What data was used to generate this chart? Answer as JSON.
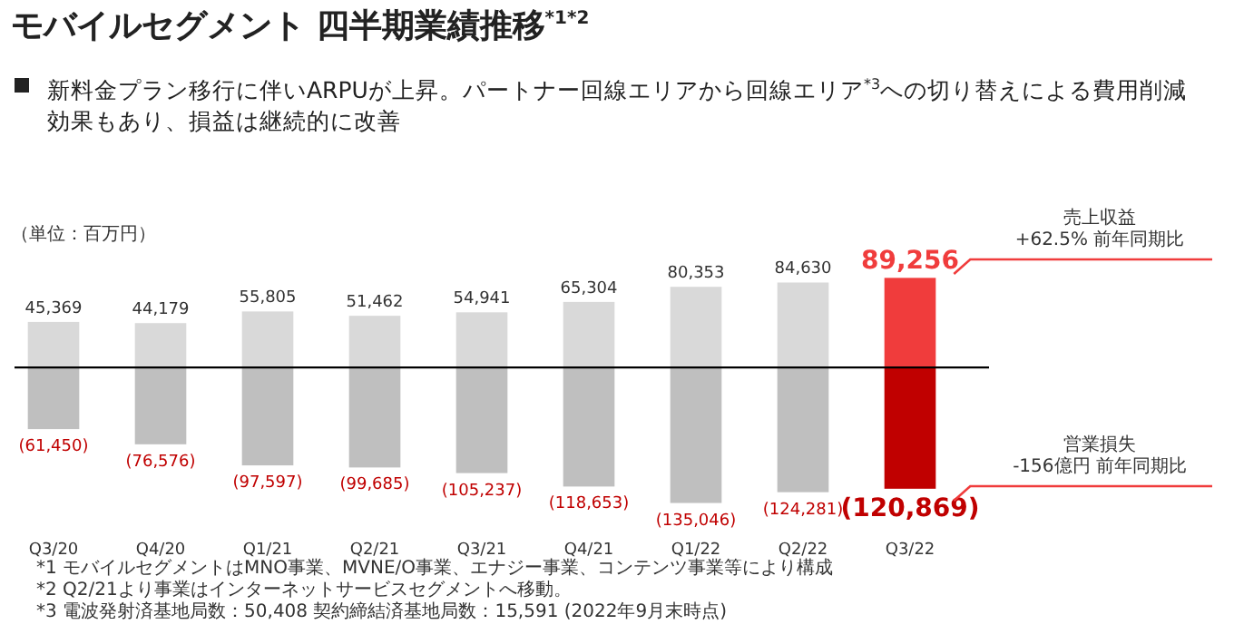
{
  "chart_data": {
    "type": "bar",
    "title": "モバイルセグメント 四半期業績推移$^{*1*2}$",
    "subtitle": "新料金プラン移行に伴いARPUが上昇。パートナー回線エリアから回線エリア$^{*3}$への切り替えによる費用削減効果もあり、損益は継続的に改善",
    "categories": [
      "Q3/20",
      "Q4/20",
      "Q1/21",
      "Q2/21",
      "Q3/21",
      "Q4/21",
      "Q1/22",
      "Q2/22",
      "Q3/22"
    ],
    "stacked": true,
    "series": [
      {
        "color": "#d9d9d9",
        "colors": [
          "#d9d9d9",
          "#d9d9d9",
          "#d9d9d9",
          "#d9d9d9",
          "#d9d9d9",
          "#d9d9d9",
          "#d9d9d9",
          "#d9d9d9",
          "#f03c3c"
        ],
        "values": [
          45369,
          44179,
          55805,
          51462,
          54941,
          65304,
          80353,
          84630,
          89256
        ],
        "value_labels": [
          "45,369",
          "44,179",
          "55,805",
          "51,462",
          "54,941",
          "65,304",
          "80,353",
          "84,630",
          "89,256"
        ]
      },
      {
        "color": "#bfbfbf",
        "colors": [
          "#bfbfbf",
          "#bfbfbf",
          "#bfbfbf",
          "#bfbfbf",
          "#bfbfbf",
          "#bfbfbf",
          "#bfbfbf",
          "#bfbfbf",
          "#c00000"
        ],
        "values": [
          -61450,
          -76576,
          -97597,
          -99685,
          -105237,
          -118653,
          -135046,
          -124281,
          -120869
        ],
        "value_labels": [
          "(61,450)",
          "(76,576)",
          "(97,597)",
          "(99,685)",
          "(105,237)",
          "(118,653)",
          "(135,046)",
          "(124,281)",
          "(120,869)"
        ]
      }
    ],
    "ylim": [
      -140000,
      95000
    ],
    "tick_labels": "x",
    "annotations": [
      "（単位：百万円）",
      "売上収益\n+62.5% 前年同期比",
      "営業損失\n-156億円 前年同期比",
      "*1 モバイルセグメントはMNO事業、MVNE/O事業、エナジー事業、コンテンツ事業等により構成",
      "*2 Q2/21より事業はインターネットサービスセグメントへ移動。",
      "*3 電波発射済基地局数：50,408 契約締結済基地局数：15,591 (2022年9月末時点)"
    ]
  }
}
